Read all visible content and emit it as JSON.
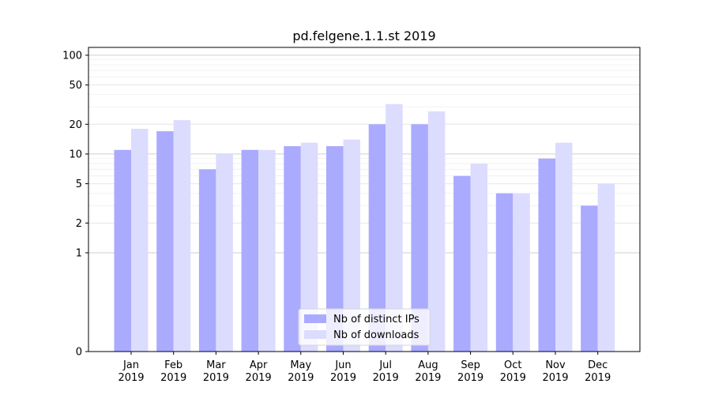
{
  "chart_data": {
    "type": "bar",
    "title": "pd.felgene.1.1.st 2019",
    "xlabel": "",
    "ylabel": "",
    "scale": "symlog",
    "ylim": [
      0,
      120
    ],
    "yticks": [
      0,
      1,
      2,
      5,
      10,
      20,
      50,
      100
    ],
    "categories": [
      [
        "Jan",
        "2019"
      ],
      [
        "Feb",
        "2019"
      ],
      [
        "Mar",
        "2019"
      ],
      [
        "Apr",
        "2019"
      ],
      [
        "May",
        "2019"
      ],
      [
        "Jun",
        "2019"
      ],
      [
        "Jul",
        "2019"
      ],
      [
        "Aug",
        "2019"
      ],
      [
        "Sep",
        "2019"
      ],
      [
        "Oct",
        "2019"
      ],
      [
        "Nov",
        "2019"
      ],
      [
        "Dec",
        "2019"
      ]
    ],
    "series": [
      {
        "name": "Nb of distinct IPs",
        "color": "#aaaaff",
        "values": [
          11,
          17,
          7,
          11,
          12,
          12,
          20,
          20,
          6,
          4,
          9,
          3
        ]
      },
      {
        "name": "Nb of downloads",
        "color": "#dcdcff",
        "values": [
          18,
          22,
          10,
          11,
          13,
          14,
          32,
          27,
          8,
          4,
          13,
          5
        ]
      }
    ],
    "legend": "bottom-center",
    "grid": true
  }
}
